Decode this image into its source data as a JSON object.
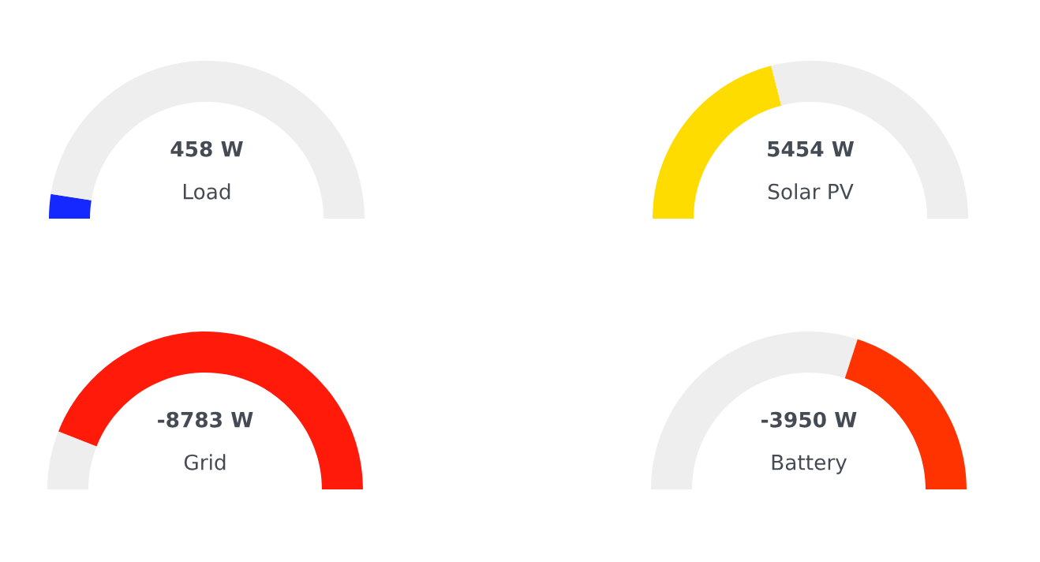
{
  "chart_data": [
    {
      "type": "donut",
      "title": "458 W",
      "subtitle": "Load",
      "categories": [
        null,
        null
      ],
      "values": [
        5,
        95
      ],
      "colors": [
        "#1428ff",
        "#eeeeee"
      ]
    },
    {
      "type": "donut",
      "title": "5454 W",
      "subtitle": "Solar PV",
      "categories": [
        null,
        null
      ],
      "values": [
        42,
        58
      ],
      "colors": [
        "#ffdc00",
        "#eeeeee"
      ]
    },
    {
      "type": "donut",
      "title": "-8783 W",
      "subtitle": "Grid",
      "categories": [
        null,
        null
      ],
      "values": [
        12,
        88
      ],
      "colors": [
        "#eeeeee",
        "#ff1a0a"
      ]
    },
    {
      "type": "donut",
      "title": "-3950 W",
      "subtitle": "Battery",
      "categories": [
        null,
        null
      ],
      "values": [
        60,
        40
      ],
      "colors": [
        "#eeeeee",
        "#ff3300"
      ]
    }
  ]
}
